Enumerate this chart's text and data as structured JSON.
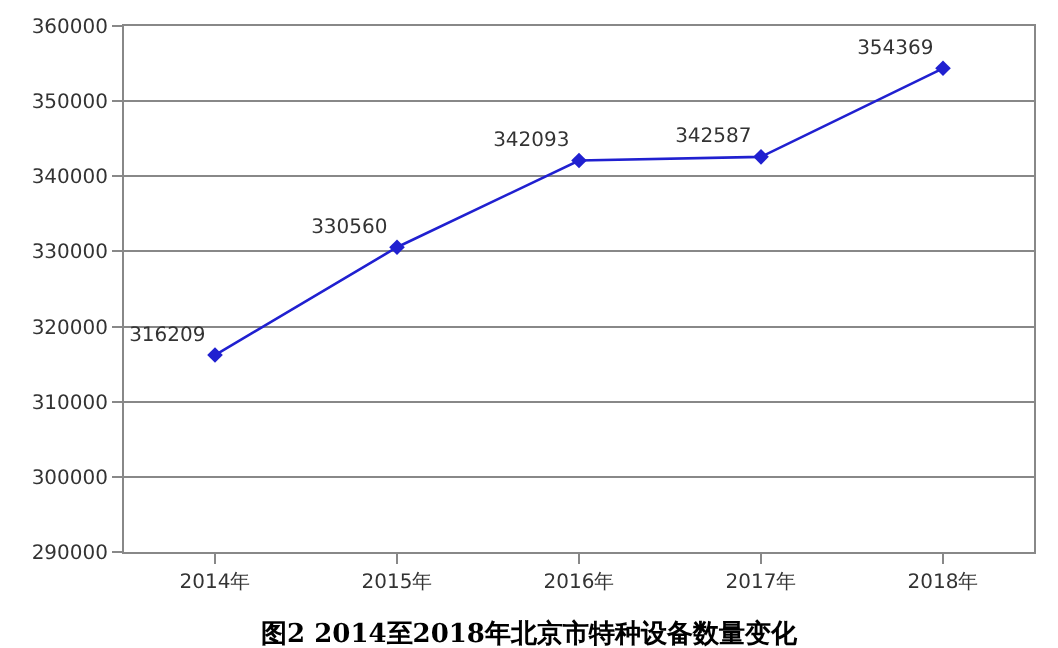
{
  "chart_data": {
    "type": "line",
    "title": "图2 2014至2018年北京市特种设备数量变化",
    "categories": [
      "2014年",
      "2015年",
      "2016年",
      "2017年",
      "2018年"
    ],
    "series": [
      {
        "color": "#2020d0",
        "values": [
          316209,
          330560,
          342093,
          342587,
          354369
        ]
      }
    ],
    "ylim": [
      290000,
      360000
    ],
    "yticks": [
      290000,
      300000,
      310000,
      320000,
      330000,
      340000,
      350000,
      360000
    ],
    "grid": "y",
    "marker": "diamond",
    "line_style": "solid",
    "data_labels": true
  }
}
